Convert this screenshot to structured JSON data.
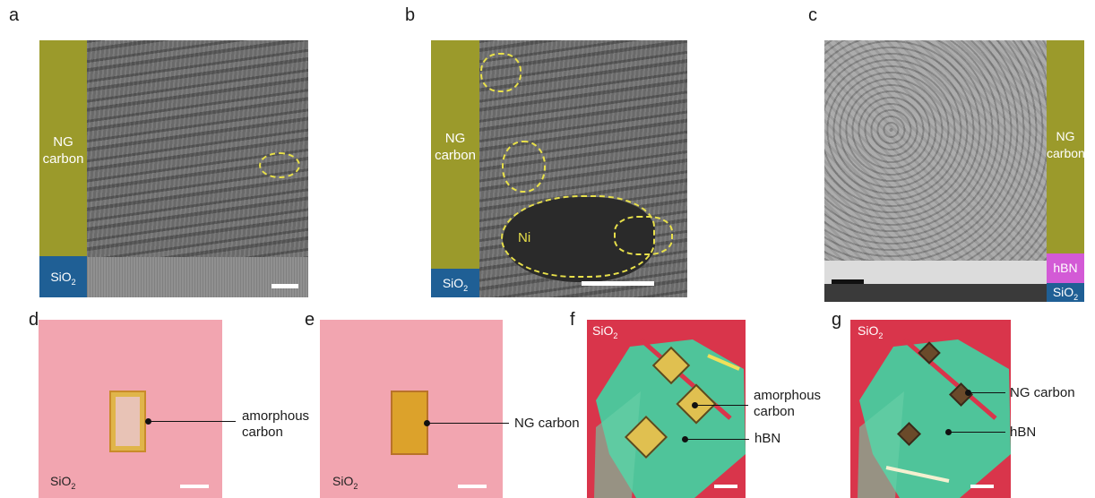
{
  "panels": {
    "a": {
      "label": "a",
      "layer": "NG carbon",
      "substrate": "SiO",
      "substrate_sub": "2"
    },
    "b": {
      "label": "b",
      "layer": "NG carbon",
      "substrate": "SiO",
      "substrate_sub": "2",
      "particle": "Ni"
    },
    "c": {
      "label": "c",
      "layer": "NG carbon",
      "hbn": "hBN",
      "substrate": "SiO",
      "substrate_sub": "2"
    },
    "d": {
      "label": "d",
      "annotation": "amorphous carbon",
      "substrate": "SiO",
      "substrate_sub": "2"
    },
    "e": {
      "label": "e",
      "annotation": "NG carbon",
      "substrate": "SiO",
      "substrate_sub": "2"
    },
    "f": {
      "label": "f",
      "annotation": "amorphous carbon",
      "hbn": "hBN",
      "substrate": "SiO",
      "substrate_sub": "2"
    },
    "g": {
      "label": "g",
      "annotation": "NG carbon",
      "hbn": "hBN",
      "substrate": "SiO",
      "substrate_sub": "2"
    }
  },
  "colors": {
    "ng_carbon_overlay": "#9b9a2b",
    "sio2_overlay": "#1f5f95",
    "hbn_overlay": "#d35ad6",
    "sio2_optical": "#f2a5b0",
    "hbn_flake": "#4fc49a",
    "substrate_red": "#d9354b",
    "dashed_outline": "#e8e04a"
  }
}
